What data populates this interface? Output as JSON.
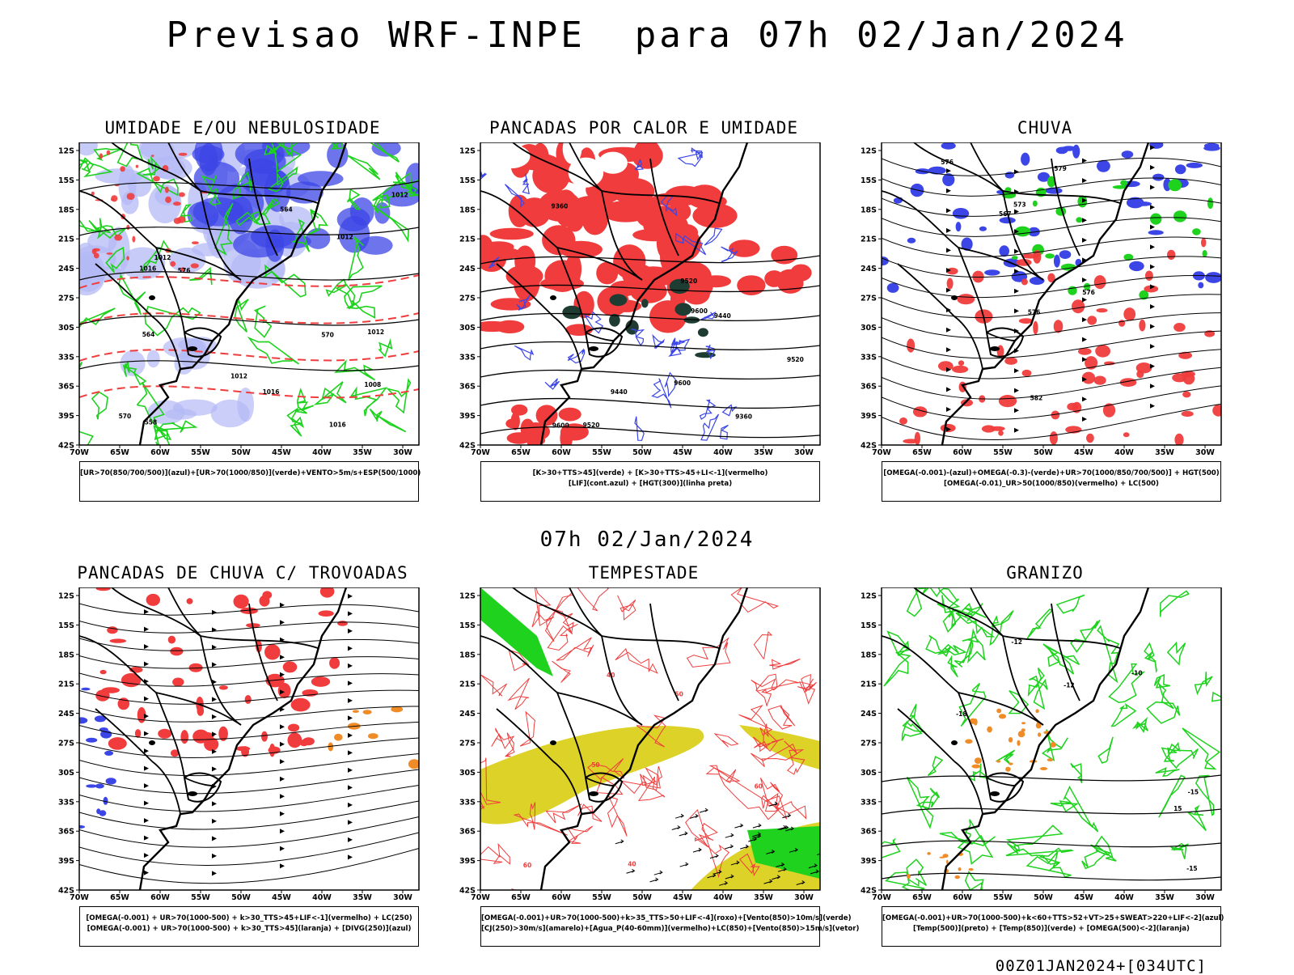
{
  "header": {
    "title": "Previsao WRF-INPE  para 07h 02/Jan/2024"
  },
  "middle_title": "07h 02/Jan/2024",
  "footer": "00Z01JAN2024+[034UTC]",
  "axes": {
    "lat_labels": [
      "12S",
      "15S",
      "18S",
      "21S",
      "24S",
      "27S",
      "30S",
      "33S",
      "36S",
      "39S",
      "42S"
    ],
    "lon_labels": [
      "70W",
      "65W",
      "60W",
      "55W",
      "50W",
      "45W",
      "40W",
      "35W",
      "30W"
    ]
  },
  "panels": [
    {
      "title": "UMIDADE E/OU NEBULOSIDADE",
      "legend": [
        "[UR>70(850/700/500)](azul)+[UR>70(1000/850)](verde)+VENTO>5m/s+ESP(500/1000)"
      ],
      "contour_labels": [
        "1012",
        "1012",
        "1012",
        "1008",
        "1016",
        "1012",
        "1016",
        "1012",
        "1016",
        "576",
        "570",
        "570",
        "564",
        "564",
        "558"
      ]
    },
    {
      "title": "PANCADAS POR CALOR E UMIDADE",
      "legend": [
        "[K>30+TTS>45](verde) + [K>30+TTS>45+LI<-1](vermelho)",
        "[LIF](cont.azul) + [HGT(300)](linha preta)"
      ],
      "contour_labels": [
        "9600",
        "9600",
        "9600",
        "9520",
        "9520",
        "9520",
        "9440",
        "9440",
        "9360",
        "9360"
      ]
    },
    {
      "title": "CHUVA",
      "legend": [
        "[OMEGA(-0.001)-(azul)+OMEGA(-0.3)-(verde)+UR>70(1000/850/700/500)] + HGT(500)",
        "[OMEGA(-0.01)_UR>50(1000/850)(vermelho) + LC(500)"
      ],
      "contour_labels": [
        "582",
        "579",
        "576",
        "576",
        "576",
        "573",
        "567"
      ]
    },
    {
      "title": "PANCADAS DE CHUVA C/ TROVOADAS",
      "legend": [
        "[OMEGA(-0.001) + UR>70(1000-500) + k>30_TTS>45+LIF<-1](vermelho) + LC(250)",
        "[OMEGA(-0.001) + UR>70(1000-500) + k>30_TTS>45](laranja) + [DIVG(250)](azul)"
      ],
      "contour_labels": []
    },
    {
      "title": "TEMPESTADE",
      "legend": [
        "[OMEGA(-0.001)+UR>70(1000-500)+k>35_TTS>50+LIF<-4](roxo)+[Vento(850)>10m/s](verde)",
        "[CJ(250)>30m/s](amarelo)+[Agua_P(40-60mm)](vermelho)+LC(850)+[Vento(850)>15m/s](vetor)"
      ],
      "contour_labels": [
        "50",
        "50",
        "60",
        "60",
        "40",
        "40"
      ]
    },
    {
      "title": "GRANIZO",
      "legend": [
        "[OMEGA(-0.001)+UR>70(1000-500)+k<60+TTS>52+VT>25+SWEAT>220+LIF<-2](azul)",
        "[Temp(500)](preto) + [Temp(850)](verde) + [OMEGA(500)<-2](laranja)"
      ],
      "contour_labels": [
        "-12",
        "-12",
        "-15",
        "-15",
        "-18",
        "-10",
        "15"
      ]
    }
  ],
  "colors": {
    "blue": "#3c46e6",
    "lightblue": "#b4b9f5",
    "green": "#1ed21e",
    "red": "#f03c3c",
    "darkgreen": "#1e3c32",
    "yellow": "#dcd228",
    "orange": "#f08c28"
  }
}
